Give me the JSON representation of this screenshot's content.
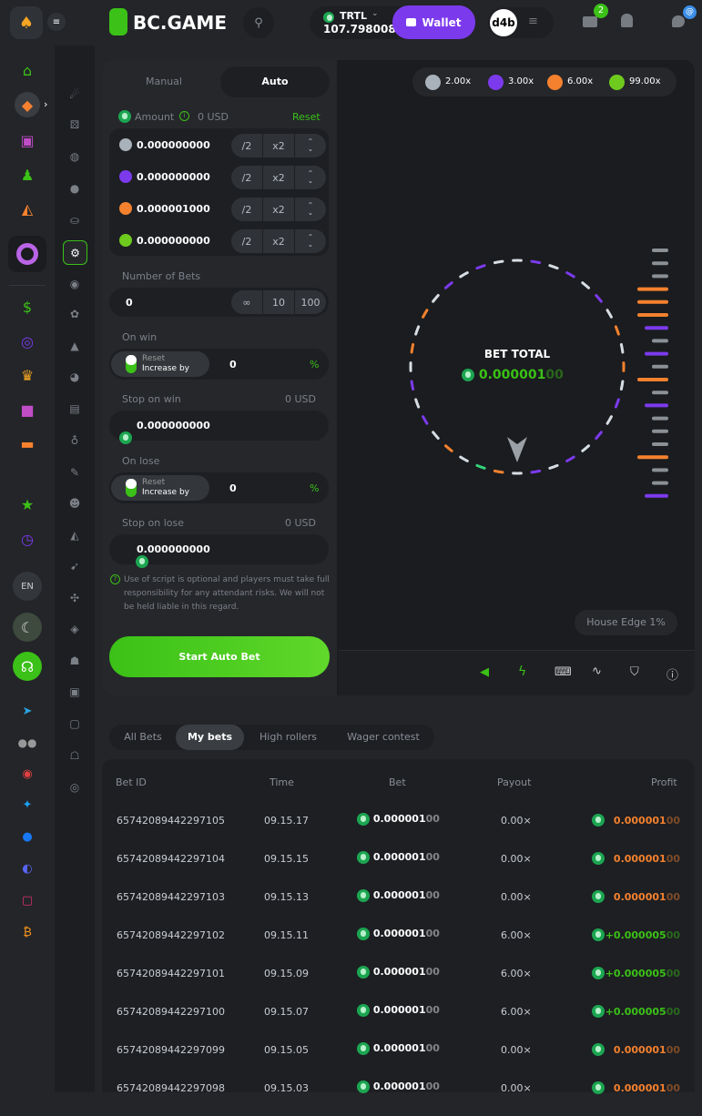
{
  "header": {
    "brand": "BC.GAME",
    "currency": "TRTL",
    "balance": "107.798008",
    "wallet_label": "Wallet",
    "avatar_text": "d4b",
    "mail_badge": "2",
    "chat_badge": "@"
  },
  "sidebar": {
    "language": "EN"
  },
  "controls": {
    "tabs": [
      "Manual",
      "Auto"
    ],
    "active_tab": "Auto",
    "amount_label": "Amount",
    "amount_usd": "0 USD",
    "reset_label": "Reset",
    "amounts": [
      {
        "color": "#a9b1ba",
        "value": "0.000000000"
      },
      {
        "color": "#7c3aed",
        "value": "0.000000000"
      },
      {
        "color": "#f5812e",
        "value": "0.000001000"
      },
      {
        "color": "#6ecb1e",
        "value": "0.000000000"
      }
    ],
    "half": "/2",
    "double": "x2",
    "bets_label": "Number of Bets",
    "bets_value": "0",
    "bets_options": [
      "∞",
      "10",
      "100"
    ],
    "on_win": {
      "label": "On win",
      "reset": "Reset",
      "increase": "Increase by",
      "value": "0",
      "unit": "%"
    },
    "stop_win": {
      "label": "Stop on win",
      "usd": "0 USD",
      "value": "0.000000000"
    },
    "on_lose": {
      "label": "On lose",
      "reset": "Reset",
      "increase": "Increase by",
      "value": "0",
      "unit": "%"
    },
    "stop_lose": {
      "label": "Stop on lose",
      "usd": "0 USD",
      "value": "0.000000000"
    },
    "disclaimer": "Use of script is optional and players must take full responsibility for any attendant risks. We will not be held liable in this regard.",
    "start_label": "Start Auto Bet"
  },
  "game": {
    "multipliers": [
      {
        "color": "#a9b1ba",
        "label": "2.00x"
      },
      {
        "color": "#7c3aed",
        "label": "3.00x"
      },
      {
        "color": "#f5812e",
        "label": "6.00x"
      },
      {
        "color": "#6ecb1e",
        "label": "99.00x"
      }
    ],
    "bet_total_label": "BET TOTAL",
    "bet_total_main": "0.000001",
    "bet_total_tail": "00",
    "wheel_segments": [
      "w",
      "p",
      "w",
      "p",
      "w",
      "p",
      "w",
      "o",
      "w",
      "o",
      "w",
      "p",
      "w",
      "p",
      "w",
      "p",
      "w",
      "p",
      "w",
      "o",
      "g",
      "w",
      "o",
      "w",
      "p",
      "w",
      "p",
      "w",
      "o",
      "w",
      "o",
      "w",
      "p",
      "w",
      "p",
      "w"
    ],
    "history": [
      "w",
      "w",
      "w",
      "o",
      "o",
      "o",
      "p",
      "w",
      "p",
      "w",
      "o",
      "w",
      "p",
      "w",
      "w",
      "w",
      "o",
      "w",
      "w",
      "p"
    ],
    "house_edge": "House Edge 1%"
  },
  "bets": {
    "tabs": [
      "All Bets",
      "My bets",
      "High rollers",
      "Wager contest"
    ],
    "active_tab": "My bets",
    "columns": [
      "Bet ID",
      "Time",
      "Bet",
      "Payout",
      "Profit"
    ],
    "rows": [
      {
        "id": "65742089442297105",
        "time": "09.15.17",
        "bet": "0.000001",
        "bet_tail": "00",
        "payout": "0.00×",
        "profit": "0.000001",
        "profit_tail": "00",
        "win": false
      },
      {
        "id": "65742089442297104",
        "time": "09.15.15",
        "bet": "0.000001",
        "bet_tail": "00",
        "payout": "0.00×",
        "profit": "0.000001",
        "profit_tail": "00",
        "win": false
      },
      {
        "id": "65742089442297103",
        "time": "09.15.13",
        "bet": "0.000001",
        "bet_tail": "00",
        "payout": "0.00×",
        "profit": "0.000001",
        "profit_tail": "00",
        "win": false
      },
      {
        "id": "65742089442297102",
        "time": "09.15.11",
        "bet": "0.000001",
        "bet_tail": "00",
        "payout": "6.00×",
        "profit": "+0.000005",
        "profit_tail": "00",
        "win": true
      },
      {
        "id": "65742089442297101",
        "time": "09.15.09",
        "bet": "0.000001",
        "bet_tail": "00",
        "payout": "6.00×",
        "profit": "+0.000005",
        "profit_tail": "00",
        "win": true
      },
      {
        "id": "65742089442297100",
        "time": "09.15.07",
        "bet": "0.000001",
        "bet_tail": "00",
        "payout": "6.00×",
        "profit": "+0.000005",
        "profit_tail": "00",
        "win": true
      },
      {
        "id": "65742089442297099",
        "time": "09.15.05",
        "bet": "0.000001",
        "bet_tail": "00",
        "payout": "0.00×",
        "profit": "0.000001",
        "profit_tail": "00",
        "win": false
      },
      {
        "id": "65742089442297098",
        "time": "09.15.03",
        "bet": "0.000001",
        "bet_tail": "00",
        "payout": "0.00×",
        "profit": "0.000001",
        "profit_tail": "00",
        "win": false
      }
    ]
  },
  "colors": {
    "accent": "#3bc117",
    "wallet": "#7c3aed",
    "loss": "#f5812e",
    "win": "#3bc117"
  }
}
